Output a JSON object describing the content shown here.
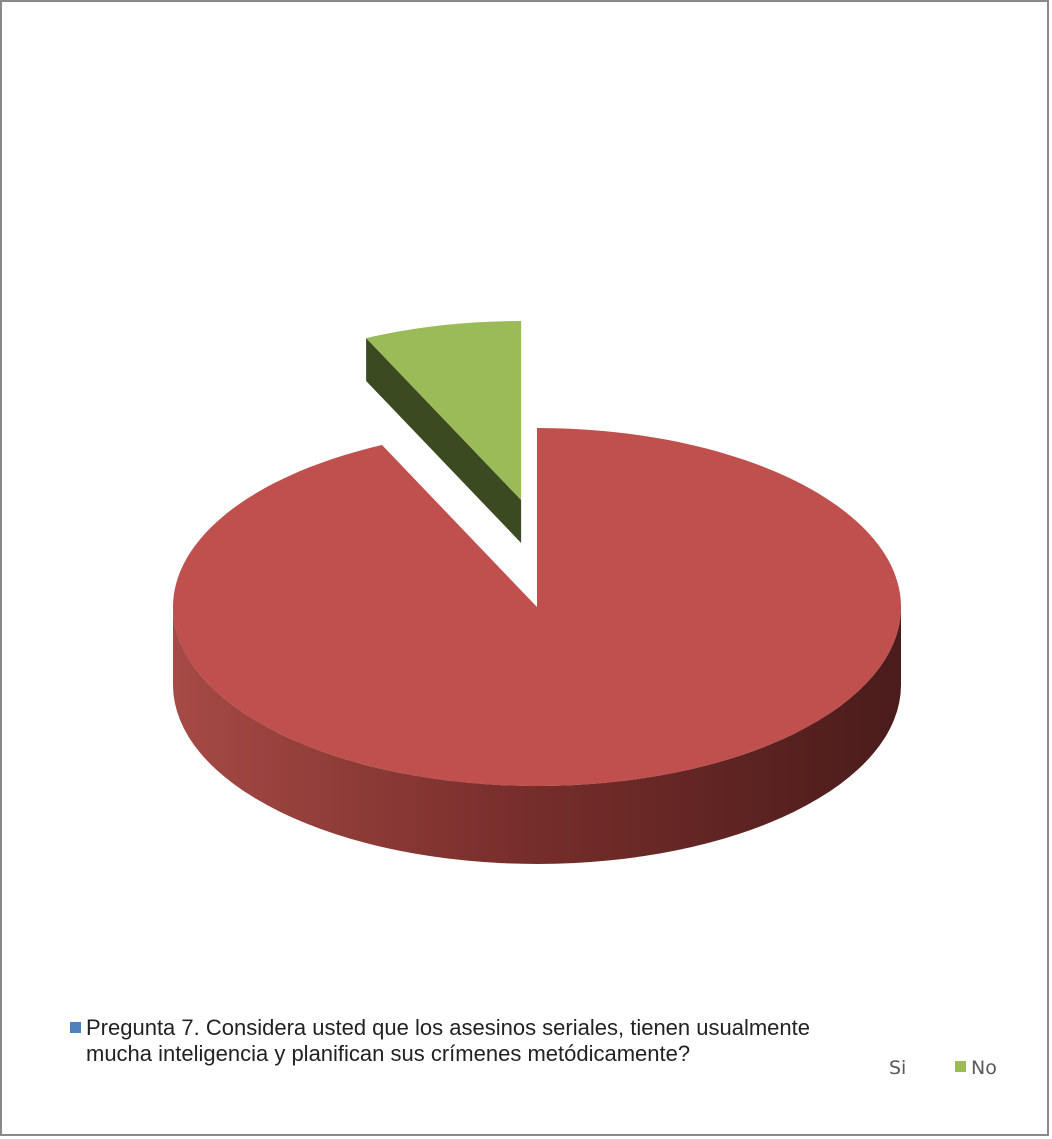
{
  "chart_data": {
    "type": "pie",
    "style": "3d-exploded",
    "title": "",
    "legend_position": "bottom",
    "series_name": "Pregunta 7. Considera usted que los asesinos seriales, tienen usualmente mucha inteligencia y planifican sus crímenes metódicamente?",
    "categories": [
      "Si",
      "No"
    ],
    "values": [
      93,
      7
    ],
    "colors": {
      "Si": "#c0504d",
      "No": "#9bbb59",
      "series_marker": "#4f81bd"
    }
  },
  "legend": {
    "question": "Pregunta 7. Considera usted que los asesinos seriales, tienen usualmente mucha inteligencia y planifican sus crímenes metódicamente?",
    "si_label": "Si",
    "no_label": "No"
  }
}
